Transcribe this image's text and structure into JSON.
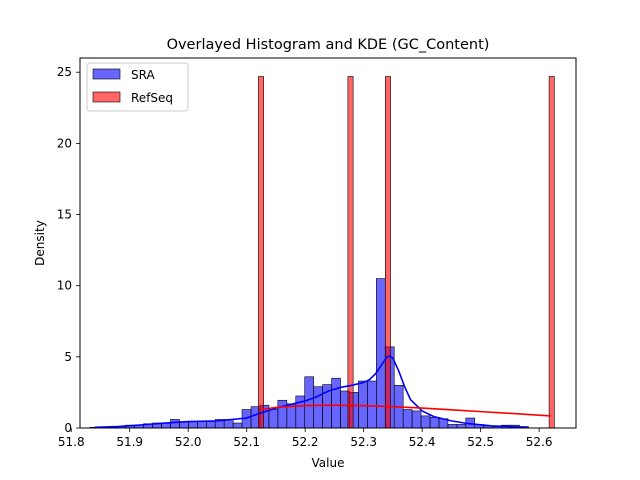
{
  "chart_data": {
    "type": "histogram",
    "title": "Overlayed Histogram and KDE (GC_Content)",
    "xlabel": "Value",
    "ylabel": "Density",
    "xlim": [
      51.815,
      52.663
    ],
    "ylim": [
      0,
      26
    ],
    "xticks": [
      51.8,
      51.9,
      52.0,
      52.1,
      52.2,
      52.3,
      52.4,
      52.5,
      52.6
    ],
    "yticks": [
      0,
      5,
      10,
      15,
      20,
      25
    ],
    "grid": false,
    "legend_position": "upper-left",
    "series": [
      {
        "name": "SRA",
        "color": "#0000ff",
        "fill_alpha": 0.6,
        "bin_edges": [
          51.832,
          51.8473,
          51.8626,
          51.8779,
          51.8932,
          51.9085,
          51.9238,
          51.9391,
          51.9544,
          51.9697,
          51.985,
          52.0003,
          52.0156,
          52.0309,
          52.0462,
          52.0615,
          52.0768,
          52.0921,
          52.1074,
          52.1227,
          52.138,
          52.1533,
          52.1686,
          52.1839,
          52.1992,
          52.2145,
          52.2298,
          52.2451,
          52.2604,
          52.2757,
          52.291,
          52.3063,
          52.3216,
          52.3369,
          52.3522,
          52.3675,
          52.3828,
          52.3981,
          52.4134,
          52.4287,
          52.444,
          52.4593,
          52.4746,
          52.4899,
          52.5052,
          52.5205,
          52.5358,
          52.5511,
          52.5664,
          52.5817
        ],
        "counts": [
          0.05,
          0.05,
          0.1,
          0.1,
          0.2,
          0.2,
          0.3,
          0.35,
          0.35,
          0.6,
          0.45,
          0.45,
          0.45,
          0.45,
          0.6,
          0.6,
          0.35,
          1.3,
          1.5,
          1.6,
          1.3,
          1.95,
          1.7,
          2.25,
          3.6,
          2.9,
          3.05,
          3.5,
          2.6,
          2.5,
          3.3,
          3.3,
          10.5,
          5.7,
          3.0,
          1.3,
          1.2,
          0.85,
          0.75,
          0.65,
          0.25,
          0.25,
          0.7,
          0.25,
          0.15,
          0.1,
          0.2,
          0.2,
          0.1
        ],
        "kde": {
          "x": [
            51.84,
            51.88,
            51.92,
            51.96,
            52.0,
            52.05,
            52.1,
            52.12,
            52.15,
            52.18,
            52.2,
            52.22,
            52.24,
            52.26,
            52.28,
            52.3,
            52.31,
            52.32,
            52.33,
            52.34,
            52.345,
            52.35,
            52.36,
            52.37,
            52.38,
            52.4,
            52.42,
            52.45,
            52.48,
            52.52,
            52.56,
            52.58
          ],
          "y": [
            0.05,
            0.1,
            0.22,
            0.35,
            0.45,
            0.5,
            0.7,
            1.0,
            1.4,
            1.7,
            1.9,
            2.2,
            2.6,
            2.85,
            3.0,
            3.2,
            3.4,
            3.8,
            4.4,
            5.0,
            5.05,
            4.9,
            4.0,
            2.9,
            2.0,
            1.2,
            0.8,
            0.5,
            0.3,
            0.15,
            0.08,
            0.05
          ]
        }
      },
      {
        "name": "RefSeq",
        "color": "#ff0000",
        "fill_alpha": 0.6,
        "bins": [
          {
            "x0": 52.12,
            "x1": 52.129,
            "value": 24.7
          },
          {
            "x0": 52.273,
            "x1": 52.282,
            "value": 24.7
          },
          {
            "x0": 52.337,
            "x1": 52.346,
            "value": 24.7
          },
          {
            "x0": 52.617,
            "x1": 52.626,
            "value": 24.7
          }
        ],
        "kde": {
          "x": [
            52.125,
            52.15,
            52.2,
            52.25,
            52.3,
            52.35,
            52.4,
            52.45,
            52.5,
            52.55,
            52.6,
            52.62
          ],
          "y": [
            1.3,
            1.45,
            1.58,
            1.6,
            1.57,
            1.5,
            1.4,
            1.28,
            1.15,
            1.03,
            0.9,
            0.85
          ]
        }
      }
    ]
  }
}
